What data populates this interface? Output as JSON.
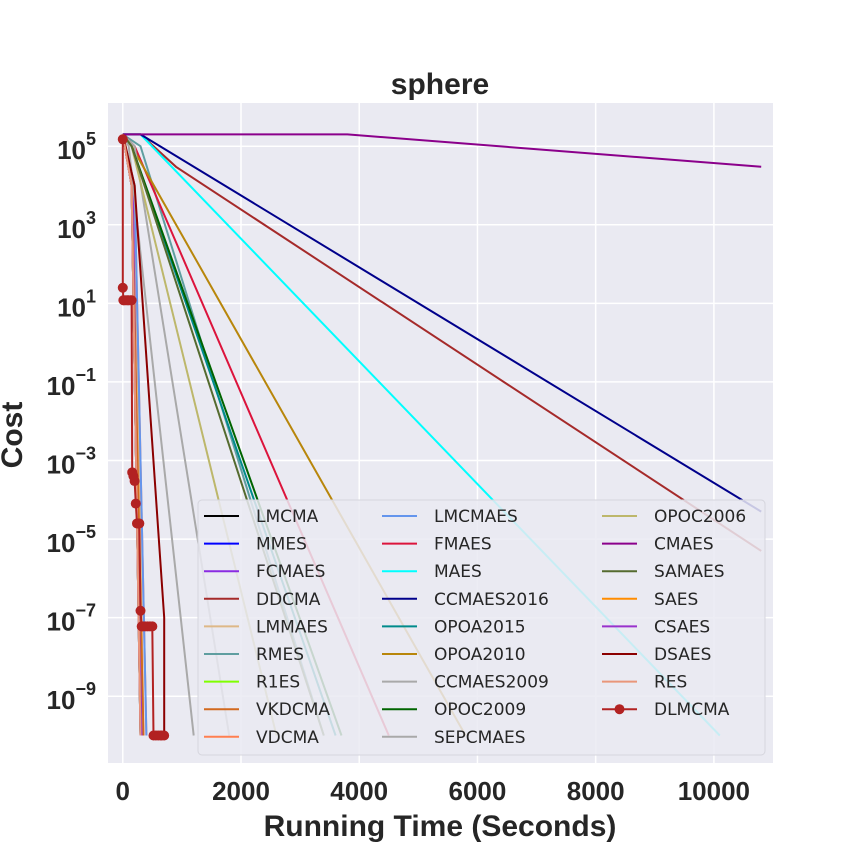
{
  "chart_data": {
    "type": "line",
    "title": "sphere",
    "xlabel": "Running Time (Seconds)",
    "ylabel": "Cost",
    "yscale": "log",
    "xlim": [
      -250,
      11000
    ],
    "ylim_log10": [
      -10.7,
      6.1
    ],
    "xticks": [
      0,
      2000,
      4000,
      6000,
      8000,
      10000
    ],
    "yticks_log10": [
      5,
      3,
      1,
      -1,
      -3,
      -5,
      -7,
      -9
    ],
    "grid": true,
    "legend_location": "lower-right",
    "legend_columns": 3,
    "series": [
      {
        "name": "LMCMA",
        "color": "#000000",
        "x": [
          0,
          150,
          300
        ],
        "y": [
          200000,
          10000,
          1e-10
        ]
      },
      {
        "name": "MMES",
        "color": "#0000ff",
        "x": [
          0,
          150,
          300
        ],
        "y": [
          200000,
          10000,
          1e-10
        ]
      },
      {
        "name": "FCMAES",
        "color": "#8a2be2",
        "x": [
          0,
          180,
          320
        ],
        "y": [
          200000,
          10000,
          1e-10
        ]
      },
      {
        "name": "DDCMA",
        "color": "#a52a2a",
        "x": [
          0,
          300,
          900,
          10800
        ],
        "y": [
          200000,
          200000,
          30000,
          5e-06
        ]
      },
      {
        "name": "LMMAES",
        "color": "#deb887",
        "x": [
          0,
          200,
          350
        ],
        "y": [
          200000,
          10000,
          1e-10
        ]
      },
      {
        "name": "RMES",
        "color": "#5f9ea0",
        "x": [
          0,
          300,
          3400
        ],
        "y": [
          200000,
          100000,
          1e-10
        ]
      },
      {
        "name": "R1ES",
        "color": "#7fff00",
        "x": [
          0,
          150,
          300
        ],
        "y": [
          200000,
          10000,
          1e-10
        ]
      },
      {
        "name": "VKDCMA",
        "color": "#d2691e",
        "x": [
          0,
          150,
          350
        ],
        "y": [
          200000,
          10000,
          1e-10
        ]
      },
      {
        "name": "VDCMA",
        "color": "#ff7f50",
        "x": [
          0,
          200,
          400
        ],
        "y": [
          200000,
          10000,
          1e-10
        ]
      },
      {
        "name": "LMCMAES",
        "color": "#6495ed",
        "x": [
          0,
          200,
          400
        ],
        "y": [
          200000,
          10000,
          1e-10
        ]
      },
      {
        "name": "FMAES",
        "color": "#dc143c",
        "x": [
          0,
          200,
          4500
        ],
        "y": [
          200000,
          100000,
          1e-10
        ]
      },
      {
        "name": "MAES",
        "color": "#00ffff",
        "x": [
          0,
          300,
          10100
        ],
        "y": [
          200000,
          200000,
          1e-10
        ]
      },
      {
        "name": "CCMAES2016",
        "color": "#00008b",
        "x": [
          0,
          300,
          10800
        ],
        "y": [
          200000,
          200000,
          5e-05
        ]
      },
      {
        "name": "OPOA2015",
        "color": "#008b8b",
        "x": [
          0,
          150,
          3600
        ],
        "y": [
          200000,
          100000,
          1e-10
        ]
      },
      {
        "name": "OPOA2010",
        "color": "#b8860b",
        "x": [
          0,
          150,
          5800
        ],
        "y": [
          200000,
          100000,
          1e-10
        ]
      },
      {
        "name": "CCMAES2009",
        "color": "#a9a9a9",
        "x": [
          0,
          200,
          1800
        ],
        "y": [
          200000,
          100000,
          1e-10
        ]
      },
      {
        "name": "OPOC2009",
        "color": "#006400",
        "x": [
          0,
          150,
          3700
        ],
        "y": [
          200000,
          100000,
          1e-10
        ]
      },
      {
        "name": "SEPCMAES",
        "color": "#a9a9a9",
        "x": [
          0,
          100,
          1200
        ],
        "y": [
          200000,
          100000,
          1e-10
        ]
      },
      {
        "name": "OPOC2006",
        "color": "#bdb76b",
        "x": [
          0,
          150,
          2600
        ],
        "y": [
          200000,
          100000,
          1e-10
        ]
      },
      {
        "name": "CMAES",
        "color": "#8b008b",
        "x": [
          0,
          3800,
          10800
        ],
        "y": [
          200000,
          200000,
          30000
        ]
      },
      {
        "name": "SAMAES",
        "color": "#556b2f",
        "x": [
          0,
          150,
          3400
        ],
        "y": [
          200000,
          100000,
          1e-10
        ]
      },
      {
        "name": "SAES",
        "color": "#ff8c00",
        "x": [
          0,
          150,
          300
        ],
        "y": [
          200000,
          10000,
          1e-10
        ]
      },
      {
        "name": "CSAES",
        "color": "#9932cc",
        "x": [
          0,
          150,
          300
        ],
        "y": [
          200000,
          10000,
          1e-10
        ]
      },
      {
        "name": "DSAES",
        "color": "#8b0000",
        "x": [
          0,
          200,
          700,
          700
        ],
        "y": [
          200000,
          10000,
          1e-07,
          1e-10
        ]
      },
      {
        "name": "RES",
        "color": "#e9967a",
        "x": [
          0,
          150,
          300
        ],
        "y": [
          200000,
          10000,
          1e-10
        ]
      },
      {
        "name": "DLMCMA",
        "color": "#b22222",
        "marker": "circle",
        "x": [
          0,
          0,
          10,
          20,
          50,
          80,
          100,
          130,
          150,
          160,
          180,
          200,
          220,
          240,
          260,
          280,
          300,
          320,
          340,
          380,
          420,
          460,
          500,
          520,
          560,
          600,
          640,
          660,
          700
        ],
        "y": [
          150000,
          25,
          12,
          12,
          12,
          12,
          12,
          12,
          12,
          0.0005,
          0.0004,
          0.0003,
          8e-05,
          2.5e-05,
          2.5e-05,
          2.5e-05,
          1.5e-07,
          6e-08,
          6e-08,
          6e-08,
          6e-08,
          6e-08,
          6e-08,
          1e-10,
          1e-10,
          1e-10,
          1e-10,
          1e-10,
          1e-10
        ]
      }
    ]
  }
}
